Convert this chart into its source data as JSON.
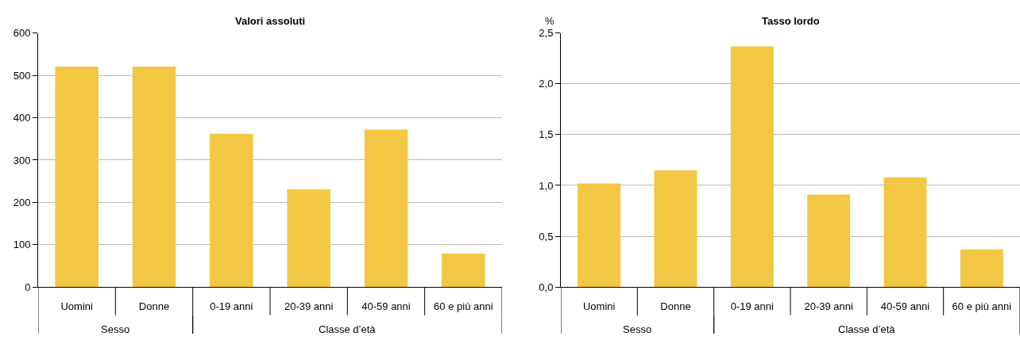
{
  "chart_data": [
    {
      "type": "bar",
      "title": "Valori assoluti",
      "categories": [
        "Uomini",
        "Donne",
        "0-19 anni",
        "20-39 anni",
        "40-59 anni",
        "60 e più anni"
      ],
      "values": [
        521,
        521,
        362,
        231,
        372,
        79
      ],
      "color": "#f2c744",
      "ylim": [
        0,
        600
      ],
      "yticks": [
        0,
        100,
        200,
        300,
        400,
        500,
        600
      ],
      "grid": "y",
      "annotations": [
        "Sesso",
        "Classe d’età"
      ]
    },
    {
      "type": "bar",
      "title": "Tasso lordo",
      "ylabel": "%",
      "categories": [
        "Uomini",
        "Donne",
        "0-19 anni",
        "20-39 anni",
        "40-59 anni",
        "60 e più anni"
      ],
      "values": [
        1.02,
        1.15,
        2.37,
        0.91,
        1.08,
        0.37
      ],
      "color": "#f2c744",
      "ylim": [
        0,
        2.5
      ],
      "yticks": [
        {
          "value": 0,
          "label": "0,0"
        },
        {
          "value": 0.5,
          "label": "0,5"
        },
        {
          "value": 1,
          "label": "1,0"
        },
        {
          "value": 1.5,
          "label": "1,5"
        },
        {
          "value": 2,
          "label": "2,0"
        },
        {
          "value": 2.5,
          "label": "2,5"
        }
      ],
      "grid": "y",
      "annotations": [
        "Sesso",
        "Classe d’età"
      ]
    }
  ]
}
